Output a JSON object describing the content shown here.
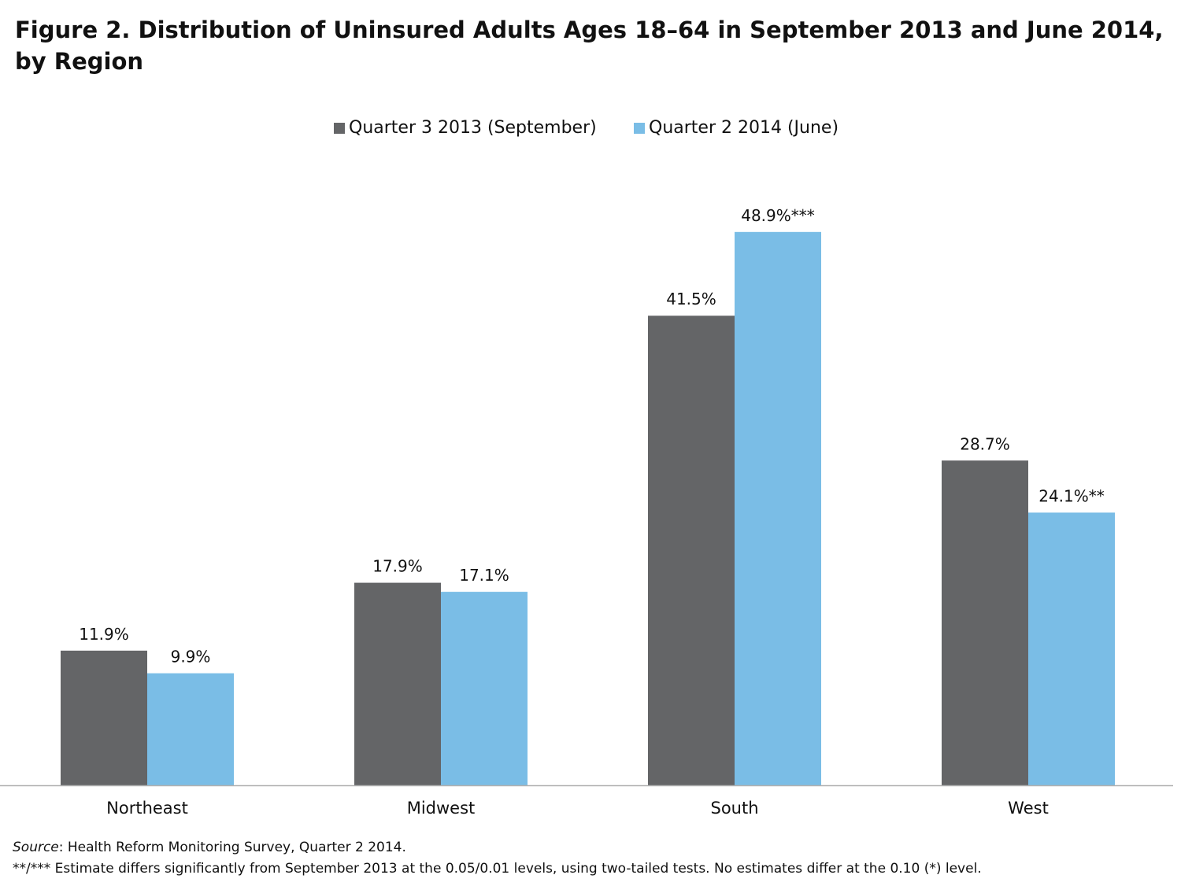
{
  "figure_title": "Figure 2.  Distribution of Uninsured Adults Ages 18–64 in September 2013 and June 2014, by Region",
  "colors": {
    "series_1": "#646567",
    "series_2": "#7abde6",
    "axis": "#b0b0b0"
  },
  "chart_data": {
    "type": "bar",
    "title": "Figure 2.  Distribution of Uninsured Adults Ages 18–64 in September 2013 and June 2014, by Region",
    "categories": [
      "Northeast",
      "Midwest",
      "South",
      "West"
    ],
    "series": [
      {
        "name": "Quarter 3 2013 (September)",
        "values": [
          11.9,
          17.9,
          41.5,
          28.7
        ],
        "labels": [
          "11.9%",
          "17.9%",
          "41.5%",
          "28.7%"
        ]
      },
      {
        "name": "Quarter 2 2014 (June)",
        "values": [
          9.9,
          17.1,
          48.9,
          24.1
        ],
        "labels": [
          "9.9%",
          "17.1%",
          "48.9%***",
          "24.1%**"
        ]
      }
    ],
    "ylim": [
      0,
      54
    ],
    "grid": false,
    "legend_position": "top-center"
  },
  "legend": {
    "items": [
      "Quarter 3 2013 (September)",
      "Quarter 2 2014 (June)"
    ]
  },
  "footnotes": {
    "source_label": "Source",
    "source_text": ": Health Reform Monitoring Survey, Quarter 2 2014.",
    "significance": "**/*** Estimate differs significantly from September 2013 at the 0.05/0.01 levels, using two-tailed tests. No estimates differ at the 0.10 (*) level."
  }
}
